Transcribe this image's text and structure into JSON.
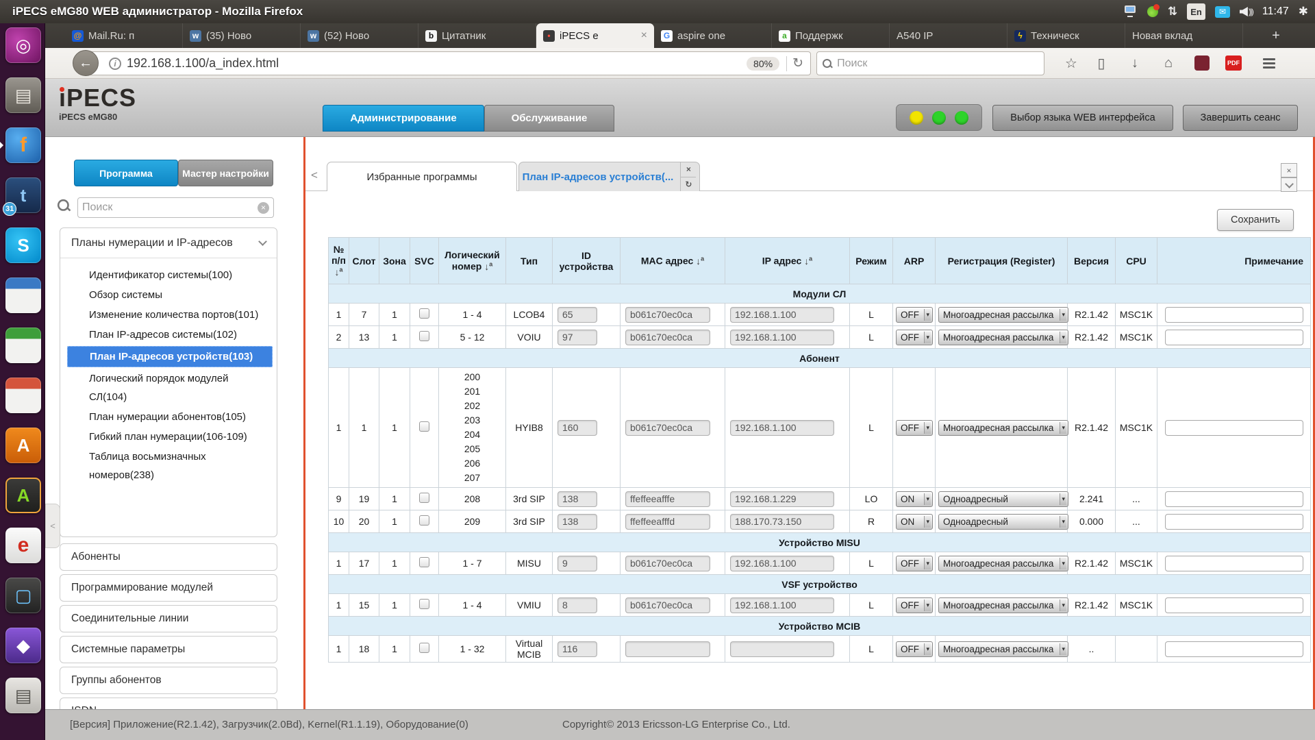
{
  "colors": {
    "accent-blue": "#2aabe2",
    "accent-blue-dark": "#0e86c4",
    "selected-blue": "#3c82e0",
    "link-blue": "#2a7fd4",
    "table-header-bg": "#d8ebf6",
    "section-row-bg": "#ddeef8",
    "orange-border": "#e0512e",
    "traffic-yellow": "#f2e400",
    "traffic-green": "#2ed32a"
  },
  "desktop": {
    "window_title": "iPECS eMG80 WEB администратор - Mozilla Firefox",
    "clock": "11:47",
    "keyboard_layout": "En"
  },
  "launcher": {
    "items": [
      {
        "id": "dash",
        "glyph": "◎"
      },
      {
        "id": "files",
        "glyph": "▤"
      },
      {
        "id": "firefox",
        "glyph": "f",
        "running": true
      },
      {
        "id": "thunderbird",
        "glyph": "t",
        "badge": "31"
      },
      {
        "id": "skype",
        "glyph": "S"
      },
      {
        "id": "writer",
        "glyph": ""
      },
      {
        "id": "calc",
        "glyph": ""
      },
      {
        "id": "impress",
        "glyph": ""
      },
      {
        "id": "orange-a",
        "glyph": "A"
      },
      {
        "id": "green-a",
        "glyph": "A",
        "active": true
      },
      {
        "id": "emule",
        "glyph": "e"
      },
      {
        "id": "remote",
        "glyph": "▢"
      },
      {
        "id": "purple-app",
        "glyph": "◆"
      },
      {
        "id": "printer",
        "glyph": "▤"
      }
    ]
  },
  "browser": {
    "tabs": [
      {
        "label": "Mail.Ru: п",
        "favicon": "mailru"
      },
      {
        "label": "(35) Ново",
        "favicon": "vk"
      },
      {
        "label": "(52) Ново",
        "favicon": "vk"
      },
      {
        "label": "Цитатник",
        "favicon": "bash"
      },
      {
        "label": "iPECS e",
        "favicon": "ipecs",
        "active": true
      },
      {
        "label": "aspire one",
        "favicon": "google"
      },
      {
        "label": "Поддержк",
        "favicon": "agreen"
      },
      {
        "label": "A540 IP",
        "favicon": null
      },
      {
        "label": "Техническ",
        "favicon": "bolt"
      },
      {
        "label": "Новая вклад",
        "favicon": null
      }
    ],
    "url": "192.168.1.100/a_index.html",
    "zoom_badge": "80%",
    "search_placeholder": "Поиск"
  },
  "app": {
    "logo_text": "iPECS",
    "logo_subtext": "iPECS eMG80",
    "nav_tabs": [
      {
        "label": "Администрирование",
        "active": true
      },
      {
        "label": "Обслуживание",
        "active": false
      }
    ],
    "lang_button": "Выбор языка WEB интерфейса",
    "logout_button": "Завершить сеанс",
    "sidebar": {
      "tabs": [
        {
          "label": "Программа",
          "active": true
        },
        {
          "label": "Мастер настройки",
          "active": false
        }
      ],
      "search_placeholder": "Поиск",
      "accordion_title": "Планы нумерации и IP-адресов",
      "items": [
        {
          "label": "Идентификатор системы(100)"
        },
        {
          "label": "Обзор системы"
        },
        {
          "label": "Изменение количества портов(101)"
        },
        {
          "label": "План IP-адресов системы(102)"
        },
        {
          "label": "План IP-адресов устройств(103)",
          "selected": true
        },
        {
          "label": "Логический порядок модулей СЛ(104)"
        },
        {
          "label": "План нумерации абонентов(105)"
        },
        {
          "label": "Гибкий план нумерации(106-109)"
        },
        {
          "label": "Таблица восьмизначных номеров(238)"
        }
      ],
      "sections": [
        "Абоненты",
        "Программирование модулей",
        "Соединительные линии",
        "Системные параметры",
        "Группы абонентов",
        "ISDN"
      ]
    },
    "content": {
      "tabs": [
        {
          "label": "Избранные программы",
          "active": true
        },
        {
          "label": "План IP-адресов устройств(...",
          "active": false,
          "closable": true
        }
      ],
      "save_button": "Сохранить",
      "table": {
        "headers": [
          {
            "label": "№ п/п",
            "sort": true
          },
          {
            "label": "Слот"
          },
          {
            "label": "Зона"
          },
          {
            "label": "SVC"
          },
          {
            "label": "Логический номер",
            "sort": true
          },
          {
            "label": "Тип"
          },
          {
            "label": "ID устройства"
          },
          {
            "label": "MAC адрес",
            "sort": true
          },
          {
            "label": "IP адрес",
            "sort": true
          },
          {
            "label": "Режим"
          },
          {
            "label": "ARP"
          },
          {
            "label": "Регистрация (Register)"
          },
          {
            "label": "Версия"
          },
          {
            "label": "CPU"
          },
          {
            "label": "Примечание"
          }
        ],
        "groups": [
          {
            "title": "Модули СЛ",
            "rows": [
              {
                "num": "1",
                "slot": "7",
                "zone": "1",
                "log": [
                  "1 - 4"
                ],
                "type": "LCOB4",
                "id": "65",
                "mac": "b061c70ec0ca",
                "ip": "192.168.1.100",
                "mode": "L",
                "arp": "OFF",
                "reg": "Многоадресная рассылка",
                "ver": "R2.1.42",
                "cpu": "MSC1K",
                "note": ""
              },
              {
                "num": "2",
                "slot": "13",
                "zone": "1",
                "log": [
                  "5 - 12"
                ],
                "type": "VOIU",
                "id": "97",
                "mac": "b061c70ec0ca",
                "ip": "192.168.1.100",
                "mode": "L",
                "arp": "OFF",
                "reg": "Многоадресная рассылка",
                "ver": "R2.1.42",
                "cpu": "MSC1K",
                "note": ""
              }
            ]
          },
          {
            "title": "Абонент",
            "rows": [
              {
                "num": "1",
                "slot": "1",
                "zone": "1",
                "log": [
                  "200",
                  "201",
                  "202",
                  "203",
                  "204",
                  "205",
                  "206",
                  "207"
                ],
                "type": "HYIB8",
                "id": "160",
                "mac": "b061c70ec0ca",
                "ip": "192.168.1.100",
                "mode": "L",
                "arp": "OFF",
                "reg": "Многоадресная рассылка",
                "ver": "R2.1.42",
                "cpu": "MSC1K",
                "note": ""
              },
              {
                "num": "9",
                "slot": "19",
                "zone": "1",
                "log": [
                  "208"
                ],
                "type": "3rd SIP",
                "id": "138",
                "mac": "ffeffeeafffe",
                "ip": "192.168.1.229",
                "mode": "LO",
                "arp": "ON",
                "reg": "Одноадресный",
                "ver": "2.241",
                "cpu": "...",
                "note": ""
              },
              {
                "num": "10",
                "slot": "20",
                "zone": "1",
                "log": [
                  "209"
                ],
                "type": "3rd SIP",
                "id": "138",
                "mac": "ffeffeeafffd",
                "ip": "188.170.73.150",
                "mode": "R",
                "arp": "ON",
                "reg": "Одноадресный",
                "ver": "0.000",
                "cpu": "...",
                "note": ""
              }
            ]
          },
          {
            "title": "Устройство MISU",
            "rows": [
              {
                "num": "1",
                "slot": "17",
                "zone": "1",
                "log": [
                  "1 - 7"
                ],
                "type": "MISU",
                "id": "9",
                "mac": "b061c70ec0ca",
                "ip": "192.168.1.100",
                "mode": "L",
                "arp": "OFF",
                "reg": "Многоадресная рассылка",
                "ver": "R2.1.42",
                "cpu": "MSC1K",
                "note": ""
              }
            ]
          },
          {
            "title": "VSF устройство",
            "rows": [
              {
                "num": "1",
                "slot": "15",
                "zone": "1",
                "log": [
                  "1 - 4"
                ],
                "type": "VMIU",
                "id": "8",
                "mac": "b061c70ec0ca",
                "ip": "192.168.1.100",
                "mode": "L",
                "arp": "OFF",
                "reg": "Многоадресная рассылка",
                "ver": "R2.1.42",
                "cpu": "MSC1K",
                "note": ""
              }
            ]
          },
          {
            "title": "Устройство MCIB",
            "rows": [
              {
                "num": "1",
                "slot": "18",
                "zone": "1",
                "log": [
                  "1 - 32"
                ],
                "type": "Virtual MCIB",
                "id": "116",
                "mac": "",
                "ip": "",
                "mode": "L",
                "arp": "OFF",
                "reg": "Многоадресная рассылка",
                "ver": "..",
                "cpu": "",
                "note": ""
              }
            ]
          }
        ]
      }
    },
    "footer": {
      "version_text": "[Версия] Приложение(R2.1.42), Загрузчик(2.0Bd), Kernel(R1.1.19), Оборудование(0)",
      "copyright": "Copyright© 2013 Ericsson-LG Enterprise Co., Ltd."
    }
  }
}
